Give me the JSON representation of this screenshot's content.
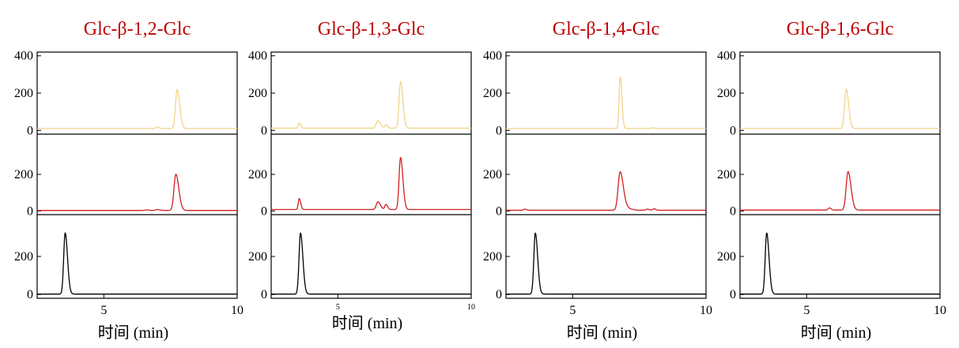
{
  "chart_data": [
    {
      "type": "line",
      "title": "Glc-β-1,2-Glc",
      "xlabel": "时间 (min)",
      "xlim": [
        2.5,
        10
      ],
      "ylim": [
        -20,
        420
      ],
      "x_ticks": [
        "5",
        "10"
      ],
      "y_ticks": [
        "0",
        "200",
        "400"
      ],
      "grid": false,
      "tick_label_size": "normal",
      "series": [
        {
          "color": "#f2d48c",
          "baseline": 10,
          "peaks": [
            {
              "x": 7.0,
              "height": 8,
              "width": 0.05
            },
            {
              "x": 7.75,
              "height": 210,
              "width": 0.06
            }
          ]
        },
        {
          "color": "#d42020",
          "baseline": 3,
          "peaks": [
            {
              "x": 6.6,
              "height": 3,
              "width": 0.05
            },
            {
              "x": 7.0,
              "height": 5,
              "width": 0.06
            },
            {
              "x": 7.7,
              "height": 198,
              "width": 0.07
            }
          ]
        },
        {
          "color": "#000000",
          "baseline": 2,
          "peaks": [
            {
              "x": 3.55,
              "height": 322,
              "width": 0.055
            }
          ]
        }
      ]
    },
    {
      "type": "line",
      "title": "Glc-β-1,3-Glc",
      "xlabel": "时间 (min)",
      "xlim": [
        2.5,
        10
      ],
      "ylim": [
        -20,
        420
      ],
      "x_ticks": [
        "5",
        "10"
      ],
      "y_ticks": [
        "0",
        "200",
        "400"
      ],
      "grid": false,
      "tick_label_size": "small",
      "series": [
        {
          "color": "#f2d48c",
          "baseline": 12,
          "peaks": [
            {
              "x": 3.55,
              "height": 28,
              "width": 0.035
            },
            {
              "x": 6.5,
              "height": 40,
              "width": 0.06
            },
            {
              "x": 6.8,
              "height": 18,
              "width": 0.04
            },
            {
              "x": 7.35,
              "height": 250,
              "width": 0.055
            }
          ]
        },
        {
          "color": "#d42020",
          "baseline": 8,
          "peaks": [
            {
              "x": 3.55,
              "height": 60,
              "width": 0.035
            },
            {
              "x": 6.5,
              "height": 42,
              "width": 0.06
            },
            {
              "x": 6.8,
              "height": 28,
              "width": 0.04
            },
            {
              "x": 7.35,
              "height": 285,
              "width": 0.055
            }
          ]
        },
        {
          "color": "#000000",
          "baseline": 2,
          "peaks": [
            {
              "x": 3.6,
              "height": 322,
              "width": 0.055
            }
          ]
        }
      ]
    },
    {
      "type": "line",
      "title": "Glc-β-1,4-Glc",
      "xlabel": "时间 (min)",
      "xlim": [
        2.5,
        10
      ],
      "ylim": [
        -20,
        420
      ],
      "x_ticks": [
        "5",
        "10"
      ],
      "y_ticks": [
        "0",
        "200",
        "400"
      ],
      "grid": false,
      "tick_label_size": "normal",
      "series": [
        {
          "color": "#f2d48c",
          "baseline": 10,
          "peaks": [
            {
              "x": 6.78,
              "height": 280,
              "width": 0.04
            },
            {
              "x": 8.0,
              "height": 4,
              "width": 0.05
            }
          ]
        },
        {
          "color": "#d42020",
          "baseline": 4,
          "peaks": [
            {
              "x": 3.2,
              "height": 6,
              "width": 0.04
            },
            {
              "x": 6.78,
              "height": 210,
              "width": 0.075
            },
            {
              "x": 7.05,
              "height": 10,
              "width": 0.1
            },
            {
              "x": 7.8,
              "height": 6,
              "width": 0.05
            },
            {
              "x": 8.05,
              "height": 8,
              "width": 0.04
            }
          ]
        },
        {
          "color": "#000000",
          "baseline": 2,
          "peaks": [
            {
              "x": 3.6,
              "height": 322,
              "width": 0.055
            }
          ]
        }
      ]
    },
    {
      "type": "line",
      "title": "Glc-β-1,6-Glc",
      "xlabel": "时间 (min)",
      "xlim": [
        2.5,
        10
      ],
      "ylim": [
        -20,
        420
      ],
      "x_ticks": [
        "5",
        "10"
      ],
      "y_ticks": [
        "0",
        "200",
        "400"
      ],
      "grid": false,
      "tick_label_size": "normal",
      "series": [
        {
          "color": "#f2d48c",
          "baseline": 10,
          "peaks": [
            {
              "x": 6.48,
              "height": 210,
              "width": 0.06
            }
          ]
        },
        {
          "color": "#d42020",
          "baseline": 5,
          "peaks": [
            {
              "x": 5.85,
              "height": 12,
              "width": 0.04
            },
            {
              "x": 6.55,
              "height": 210,
              "width": 0.07
            }
          ]
        },
        {
          "color": "#000000",
          "baseline": 2,
          "peaks": [
            {
              "x": 3.5,
              "height": 322,
              "width": 0.055
            }
          ]
        }
      ]
    }
  ]
}
